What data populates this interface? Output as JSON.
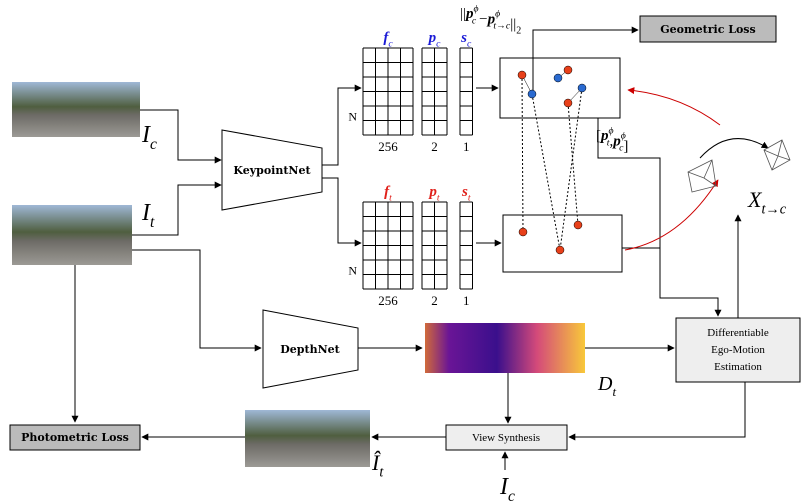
{
  "inputs": {
    "current": {
      "base": "I",
      "sub": "c"
    },
    "target": {
      "base": "I",
      "sub": "t"
    }
  },
  "networks": {
    "keypoint": "KeypointNet",
    "depth": "DepthNet"
  },
  "outputs_current": {
    "columns": [
      {
        "base": "f",
        "sub": "c"
      },
      {
        "base": "p",
        "sub": "c"
      },
      {
        "base": "s",
        "sub": "c"
      }
    ],
    "dims": [
      "256",
      "2",
      "1"
    ],
    "rows": "N"
  },
  "outputs_target": {
    "columns": [
      {
        "base": "f",
        "sub": "t"
      },
      {
        "base": "p",
        "sub": "t"
      },
      {
        "base": "s",
        "sub": "t"
      }
    ],
    "dims": [
      "256",
      "2",
      "1"
    ],
    "rows": "N"
  },
  "norm": {
    "open": "||",
    "left": {
      "base": "p",
      "sup": "ϕ",
      "sub": "c"
    },
    "minus": "−",
    "right": {
      "base": "p",
      "sup": "ϕ",
      "sub": "t→c"
    },
    "close": "||",
    "sub": "2"
  },
  "pair": {
    "open": "[",
    "first": {
      "base": "p",
      "sup": "ϕ",
      "sub": "t"
    },
    "sep": ",",
    "second": {
      "base": "p",
      "sup": "ϕ",
      "sub": "c"
    },
    "close": "]"
  },
  "transform": {
    "base": "X",
    "sub": "t→c"
  },
  "depth": {
    "base": "D",
    "sub": "t"
  },
  "synthesized": {
    "base": "Î",
    "sub": "t"
  },
  "synthesis_input": {
    "base": "I",
    "sub": "c"
  },
  "geometric_loss": "Geometric Loss",
  "photometric_loss": "Photometric Loss",
  "view_synthesis": "View Synthesis",
  "ego_motion": [
    "Differentiable",
    "Ego-Motion",
    "Estimation"
  ]
}
